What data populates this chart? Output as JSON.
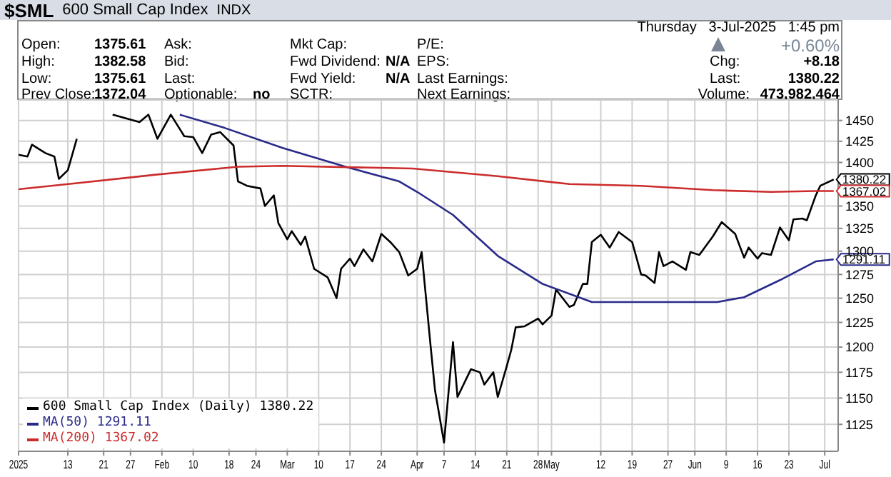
{
  "chart_data": {
    "type": "line",
    "title": "$SML",
    "subtitle": "600 Small Cap Index",
    "annotations": [
      "INDX",
      "Open:",
      "1375.61",
      "High:",
      "1382.58",
      "Low:",
      "1375.61",
      "Prev Close:",
      "1372.04",
      "Ask:",
      "Bid:",
      "Last:",
      "Optionable:",
      "no",
      "Mkt Cap:",
      "Fwd Dividend:",
      "N/A",
      "Fwd Yield:",
      "N/A",
      "SCTR:",
      "P/E:",
      "EPS:",
      "Last Earnings:",
      "Next Earnings:",
      "Thursday   3-Jul-2025   1:45 pm",
      "+0.60%",
      "Chg:",
      "+8.18",
      "Last:",
      "1380.22",
      "Volume:",
      "473,982,464",
      {
        "text": "1380.22",
        "x": "2025-07-03",
        "y": 1380.22
      },
      {
        "text": "1367.02",
        "x": "2025-07-03",
        "y": 1367.02
      },
      {
        "text": "1291.11",
        "x": "2025-07-03",
        "y": 1291.11
      }
    ],
    "series": [
      {
        "name": "600 Small Cap Index (Daily) 1380.22",
        "color": "#000000",
        "x": [
          "2025-01-02",
          "2025-01-04",
          "2025-01-05",
          "2025-01-08",
          "2025-01-10",
          "2025-01-11",
          "2025-01-13",
          "2025-01-15",
          "2025-01-20",
          "2025-01-23",
          "2025-01-29",
          "2025-01-31",
          "2025-02-02",
          "2025-02-05",
          "2025-02-08",
          "2025-02-10",
          "2025-02-12",
          "2025-02-14",
          "2025-02-16",
          "2025-02-19",
          "2025-02-20",
          "2025-02-22",
          "2025-02-25",
          "2025-02-26",
          "2025-02-28",
          "2025-03-01",
          "2025-03-03",
          "2025-03-04",
          "2025-03-06",
          "2025-03-07",
          "2025-03-09",
          "2025-03-12",
          "2025-03-14",
          "2025-03-15",
          "2025-03-17",
          "2025-03-18",
          "2025-03-20",
          "2025-03-22",
          "2025-03-24",
          "2025-03-26",
          "2025-03-28",
          "2025-03-30",
          "2025-04-01",
          "2025-04-02",
          "2025-04-04",
          "2025-04-05",
          "2025-04-07",
          "2025-04-09",
          "2025-04-10",
          "2025-04-13",
          "2025-04-15",
          "2025-04-16",
          "2025-04-18",
          "2025-04-19",
          "2025-04-21",
          "2025-04-22",
          "2025-04-23",
          "2025-04-25",
          "2025-04-28",
          "2025-04-29",
          "2025-05-01",
          "2025-05-02",
          "2025-05-05",
          "2025-05-06",
          "2025-05-08",
          "2025-05-09",
          "2025-05-10",
          "2025-05-12",
          "2025-05-14",
          "2025-05-16",
          "2025-05-19",
          "2025-05-21",
          "2025-05-22",
          "2025-05-24",
          "2025-05-25",
          "2025-05-26",
          "2025-05-28",
          "2025-05-31",
          "2025-06-01",
          "2025-06-03",
          "2025-06-06",
          "2025-06-08",
          "2025-06-11",
          "2025-06-13",
          "2025-06-14",
          "2025-06-16",
          "2025-06-17",
          "2025-06-19",
          "2025-06-21",
          "2025-06-23",
          "2025-06-24",
          "2025-06-26",
          "2025-06-27",
          "2025-06-29",
          "2025-06-30",
          "2025-07-03"
        ],
        "values": [
          1409,
          1407,
          1421,
          1411,
          1407,
          1381,
          1391,
          1428,
          null,
          1457,
          1448,
          1457,
          1428,
          1457,
          1431,
          1430,
          1411,
          1433,
          1436,
          1420,
          1378,
          1373,
          1370,
          1350,
          1362,
          1331,
          1313,
          1322,
          1307,
          1316,
          1281,
          1272,
          1250,
          1281,
          1292,
          1284,
          1302,
          1289,
          1319,
          1310,
          1299,
          1274,
          1281,
          1299,
          1201,
          1157,
          1108,
          1205,
          1151,
          1178,
          1175,
          1163,
          1175,
          1151,
          1181,
          1197,
          1220,
          1221,
          1229,
          1223,
          1232,
          1259,
          1241,
          1243,
          1265,
          1265,
          1310,
          1318,
          1304,
          1321,
          1310,
          1275,
          1274,
          1266,
          1299,
          1284,
          1289,
          1280,
          1299,
          1296,
          1316,
          1332,
          1319,
          1293,
          1304,
          1292,
          1298,
          1296,
          1326,
          1312,
          1335,
          1336,
          1334,
          1362,
          1373,
          1380.22
        ]
      },
      {
        "name": "MA(50) 1291.11",
        "color": "#2a2a8a",
        "x": [
          "2025-02-07",
          "2025-02-17",
          "2025-03-02",
          "2025-03-16",
          "2025-03-28",
          "2025-04-01",
          "2025-04-09",
          "2025-04-19",
          "2025-04-29",
          "2025-05-10",
          "2025-05-21",
          "2025-05-31",
          "2025-06-07",
          "2025-06-13",
          "2025-06-21",
          "2025-06-29",
          "2025-07-03"
        ],
        "values": [
          1457,
          1441,
          1417,
          1395,
          1378,
          1366,
          1340,
          1295,
          1265,
          1246,
          1246,
          1246,
          1246,
          1251,
          1269,
          1289,
          1291.11
        ]
      },
      {
        "name": "MA(200) 1367.02",
        "color": "#cc2b2b",
        "x": [
          "2025-01-02",
          "2025-01-15",
          "2025-02-02",
          "2025-02-20",
          "2025-03-02",
          "2025-03-31",
          "2025-04-19",
          "2025-05-05",
          "2025-05-21",
          "2025-06-06",
          "2025-06-19",
          "2025-06-29",
          "2025-07-03"
        ],
        "values": [
          1369,
          1376,
          1386,
          1395,
          1396,
          1393,
          1384,
          1375,
          1373,
          1368,
          1366,
          1367,
          1367.02
        ]
      }
    ],
    "xlim": [
      "2025-01-02",
      "2025-07-04"
    ],
    "xticks": [
      {
        "value": "2025-01-02",
        "label": "2025"
      },
      {
        "value": "2025-01-13",
        "label": "13"
      },
      {
        "value": "2025-01-21",
        "label": "21"
      },
      {
        "value": "2025-01-27",
        "label": "27"
      },
      {
        "value": "2025-02-03",
        "label": "Feb"
      },
      {
        "value": "2025-02-10",
        "label": "10"
      },
      {
        "value": "2025-02-18",
        "label": "18"
      },
      {
        "value": "2025-02-24",
        "label": "24"
      },
      {
        "value": "2025-03-03",
        "label": "Mar"
      },
      {
        "value": "2025-03-10",
        "label": "10"
      },
      {
        "value": "2025-03-17",
        "label": "17"
      },
      {
        "value": "2025-03-24",
        "label": "24"
      },
      {
        "value": "2025-04-01",
        "label": "Apr"
      },
      {
        "value": "2025-04-07",
        "label": "7"
      },
      {
        "value": "2025-04-14",
        "label": "14"
      },
      {
        "value": "2025-04-21",
        "label": "21"
      },
      {
        "value": "2025-04-28",
        "label": "28"
      },
      {
        "value": "2025-05-01",
        "label": "May"
      },
      {
        "value": "2025-05-12",
        "label": "12"
      },
      {
        "value": "2025-05-19",
        "label": "19"
      },
      {
        "value": "2025-05-27",
        "label": "27"
      },
      {
        "value": "2025-06-02",
        "label": "Jun"
      },
      {
        "value": "2025-06-09",
        "label": "9"
      },
      {
        "value": "2025-06-16",
        "label": "16"
      },
      {
        "value": "2025-06-23",
        "label": "23"
      },
      {
        "value": "2025-07-01",
        "label": "Jul"
      }
    ],
    "ylim": [
      1100,
      1475
    ],
    "yticks": [
      1125,
      1150,
      1175,
      1200,
      1225,
      1250,
      1275,
      1300,
      1325,
      1350,
      1400,
      1425,
      1450
    ],
    "log": "y",
    "grid": true,
    "legend": "bottom left",
    "marker": "none",
    "line_style": "solid"
  }
}
